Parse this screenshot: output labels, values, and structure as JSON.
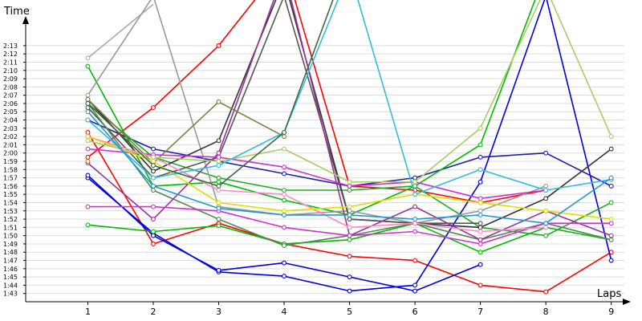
{
  "chart_data": {
    "type": "line",
    "xlabel": "Laps",
    "ylabel": "Time",
    "x": [
      1,
      2,
      3,
      4,
      5,
      6,
      7,
      8,
      9
    ],
    "xlim": [
      0.05,
      9.2
    ],
    "ylim": [
      102.0,
      136.0
    ],
    "y_ticks": [
      "1:43",
      "1:44",
      "1:45",
      "1:46",
      "1:47",
      "1:48",
      "1:49",
      "1:50",
      "1:51",
      "1:52",
      "1:53",
      "1:54",
      "1:55",
      "1:56",
      "1:57",
      "1:58",
      "1:59",
      "2:00",
      "2:01",
      "2:02",
      "2:03",
      "2:04",
      "2:05",
      "2:06",
      "2:07",
      "2:08",
      "2:09",
      "2:10",
      "2:11",
      "2:12",
      "2:13"
    ],
    "y_tick_values": [
      103,
      104,
      105,
      106,
      107,
      108,
      109,
      110,
      111,
      112,
      113,
      114,
      115,
      116,
      117,
      118,
      119,
      120,
      121,
      122,
      123,
      124,
      125,
      126,
      127,
      128,
      129,
      130,
      131,
      132,
      133
    ],
    "grid": true,
    "legend": "none",
    "series": [
      {
        "color": "#ff0000",
        "values": [
          119.5,
          125.5,
          133.0,
          143.0,
          116.0,
          115.5,
          114.0,
          115.5,
          null
        ]
      },
      {
        "color": "#ff0000",
        "values": [
          122.5,
          109.0,
          111.5,
          109.0,
          107.5,
          107.0,
          104.0,
          103.2,
          108.0
        ]
      },
      {
        "color": "#0000dd",
        "values": [
          117.0,
          110.3,
          105.6,
          105.1,
          103.3,
          104.0,
          116.5,
          139.0,
          107.0
        ]
      },
      {
        "color": "#0000dd",
        "values": [
          117.3,
          110.0,
          105.8,
          106.7,
          105.0,
          103.3,
          106.5,
          null,
          null
        ]
      },
      {
        "color": "#1e1eaa",
        "values": [
          124.0,
          120.5,
          119.0,
          117.5,
          116.0,
          117.0,
          119.5,
          120.0,
          116.0
        ]
      },
      {
        "color": "#00bb00",
        "values": [
          130.5,
          116.0,
          116.5,
          114.3,
          112.5,
          116.0,
          121.0,
          142.0,
          null
        ]
      },
      {
        "color": "#00bb00",
        "values": [
          111.3,
          110.5,
          111.2,
          109.0,
          109.5,
          111.5,
          108.0,
          111.0,
          109.5
        ]
      },
      {
        "color": "#22aa22",
        "values": [
          126.0,
          119.5,
          117.0,
          115.5,
          115.5,
          116.0,
          111.0,
          110.0,
          114.0
        ]
      },
      {
        "color": "#aaaaaa",
        "values": [
          131.5,
          138.0,
          null,
          null,
          null,
          null,
          null,
          null,
          null
        ]
      },
      {
        "color": "#999999",
        "values": [
          127.0,
          139.0,
          113.5,
          112.5,
          113.0,
          111.5,
          113.0,
          116.0,
          null
        ]
      },
      {
        "color": "#333333",
        "values": [
          126.5,
          117.8,
          121.5,
          141.0,
          112.0,
          111.5,
          111.0,
          114.5,
          120.5
        ]
      },
      {
        "color": "#555555",
        "values": [
          125.5,
          117.0,
          119.5,
          139.0,
          112.0,
          111.5,
          111.5,
          null,
          null
        ]
      },
      {
        "color": "#808040",
        "values": [
          126.5,
          118.8,
          126.2,
          122.0,
          null,
          null,
          null,
          null,
          null
        ]
      },
      {
        "color": "#558855",
        "values": [
          126.0,
          115.5,
          112.0,
          108.8,
          110.0,
          111.5,
          109.5,
          111.5,
          109.5
        ]
      },
      {
        "color": "#993399",
        "values": [
          118.8,
          112.0,
          120.0,
          142.0,
          110.0,
          113.5,
          109.5,
          113.0,
          110.0
        ]
      },
      {
        "color": "#cc33cc",
        "values": [
          120.5,
          119.8,
          119.5,
          118.3,
          116.0,
          116.5,
          114.5,
          115.5,
          null
        ]
      },
      {
        "color": "#cc33cc",
        "values": [
          113.5,
          113.5,
          113.0,
          111.0,
          110.0,
          110.5,
          109.0,
          111.5,
          111.5
        ]
      },
      {
        "color": "#ff88cc",
        "values": [
          122.0,
          119.5,
          115.5,
          115.0,
          111.0,
          111.5,
          110.5,
          111.0,
          null
        ]
      },
      {
        "color": "#dddd00",
        "values": [
          122.0,
          119.0,
          114.0,
          113.0,
          113.5,
          115.0,
          114.0,
          113.0,
          112.0
        ]
      },
      {
        "color": "#aacc66",
        "values": [
          121.5,
          119.5,
          119.0,
          120.5,
          116.5,
          116.5,
          123.0,
          140.0,
          122.0
        ]
      },
      {
        "color": "#33bbdd",
        "values": [
          124.0,
          117.0,
          118.5,
          122.5,
          142.0,
          115.0,
          118.0,
          115.5,
          116.8
        ]
      },
      {
        "color": "#2299cc",
        "values": [
          125.0,
          116.0,
          113.3,
          112.5,
          112.5,
          112.0,
          112.5,
          111.5,
          117.0
        ]
      },
      {
        "color": "#446644",
        "values": [
          126.0,
          118.5,
          116.0,
          122.5,
          144.0,
          null,
          null,
          null,
          null
        ]
      },
      {
        "color": "#bb7700",
        "values": [
          119.0,
          null,
          null,
          null,
          null,
          null,
          null,
          null,
          null
        ]
      }
    ]
  }
}
